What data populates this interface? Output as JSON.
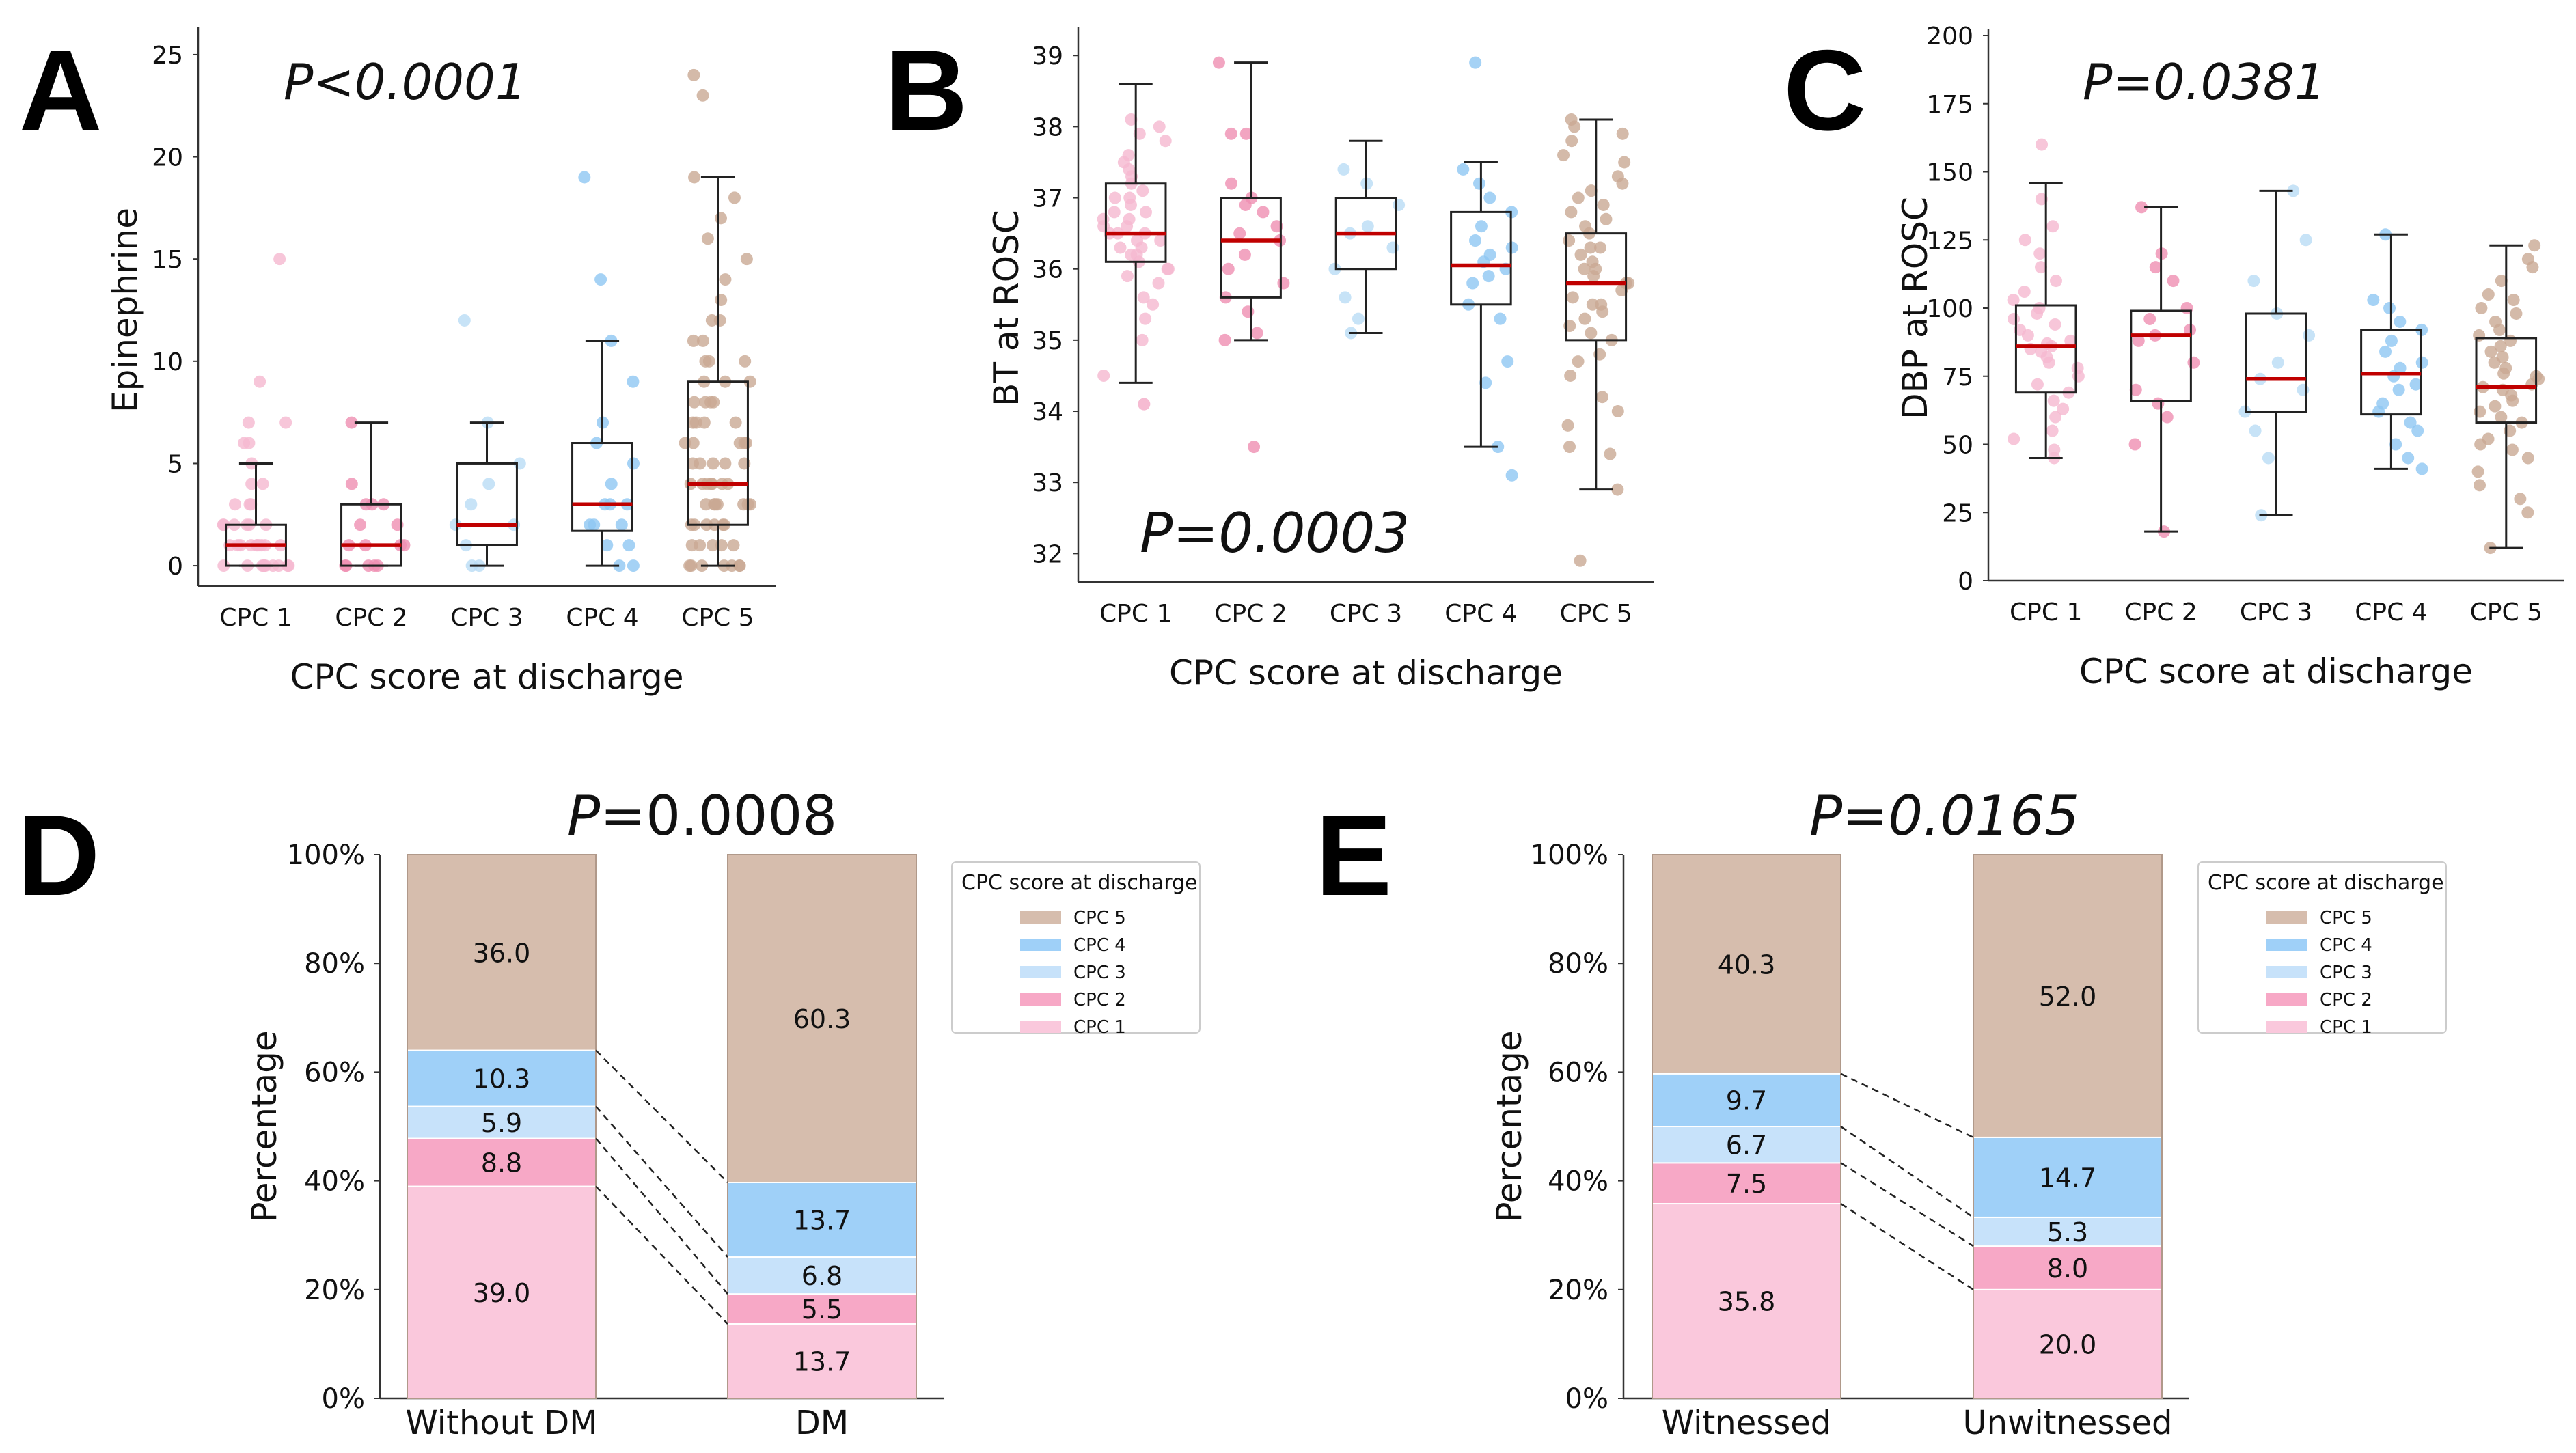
{
  "colors": {
    "cpc1": "#f5b8cf",
    "cpc2": "#ef8fb1",
    "cpc3": "#b9dcf5",
    "cpc4": "#8ec7f2",
    "cpc5": "#c9a993",
    "cpc1_fill": "#fac8dc",
    "cpc2_fill": "#f7a8c6",
    "cpc3_fill": "#c7e2fa",
    "cpc4_fill": "#9fd0f8",
    "cpc5_fill": "#d6bdad",
    "median": "#c00000",
    "axis": "#333333",
    "box": "#222222"
  },
  "chart_data": [
    {
      "id": "A",
      "letter": "A",
      "type": "box",
      "title": "P<0.0001",
      "xlabel": "CPC score at discharge",
      "ylabel": "Epinephrine",
      "categories": [
        "CPC 1",
        "CPC 2",
        "CPC 3",
        "CPC 4",
        "CPC 5"
      ],
      "ylim": [
        -1,
        26
      ],
      "yticks": [
        0,
        5,
        10,
        15,
        20,
        25
      ],
      "boxes": [
        {
          "min": 0,
          "q1": 0,
          "median": 1,
          "q3": 2,
          "max": 5
        },
        {
          "min": 0,
          "q1": 0,
          "median": 1,
          "q3": 3,
          "max": 7
        },
        {
          "min": 0,
          "q1": 1,
          "median": 2,
          "q3": 5,
          "max": 7
        },
        {
          "min": 0,
          "q1": 1.7,
          "median": 3,
          "q3": 6,
          "max": 11
        },
        {
          "min": 0,
          "q1": 2,
          "median": 4,
          "q3": 9,
          "max": 19
        }
      ],
      "points": [
        [
          0,
          0,
          0,
          0,
          0,
          0,
          0,
          0,
          0,
          0,
          0,
          1,
          1,
          1,
          1,
          1,
          1,
          1,
          1,
          1,
          1,
          2,
          2,
          2,
          2,
          2,
          2,
          3,
          3,
          3,
          4,
          4,
          5,
          6,
          6,
          7,
          7,
          9,
          15
        ],
        [
          0,
          0,
          0,
          0,
          0,
          1,
          1,
          1,
          1,
          2,
          2,
          3,
          3,
          3,
          4,
          7
        ],
        [
          0,
          0,
          1,
          2,
          2,
          3,
          4,
          5,
          7,
          12
        ],
        [
          0,
          0,
          1,
          1,
          2,
          2,
          2,
          3,
          3,
          3,
          4,
          5,
          6,
          7,
          9,
          11,
          14,
          19
        ],
        [
          0,
          0,
          0,
          0,
          0,
          0,
          0,
          1,
          1,
          1,
          1,
          1,
          2,
          2,
          2,
          2,
          2,
          2,
          3,
          3,
          3,
          3,
          3,
          3,
          3,
          4,
          4,
          4,
          4,
          4,
          4,
          4,
          5,
          5,
          5,
          5,
          5,
          6,
          6,
          6,
          6,
          6,
          7,
          7,
          7,
          7,
          8,
          8,
          8,
          8,
          9,
          9,
          9,
          10,
          10,
          10,
          11,
          11,
          12,
          12,
          13,
          14,
          15,
          16,
          17,
          18,
          19,
          23,
          24
        ]
      ]
    },
    {
      "id": "B",
      "letter": "B",
      "type": "box",
      "title": "P=0.0003",
      "xlabel": "CPC score at discharge",
      "ylabel": "BT at ROSC",
      "categories": [
        "CPC 1",
        "CPC 2",
        "CPC 3",
        "CPC 4",
        "CPC 5"
      ],
      "ylim": [
        31.6,
        39.3
      ],
      "yticks": [
        32,
        33,
        34,
        35,
        36,
        37,
        38,
        39
      ],
      "boxes": [
        {
          "min": 34.4,
          "q1": 36.1,
          "median": 36.5,
          "q3": 37.2,
          "max": 38.6
        },
        {
          "min": 35.0,
          "q1": 35.6,
          "median": 36.4,
          "q3": 37.0,
          "max": 38.9
        },
        {
          "min": 35.1,
          "q1": 36.0,
          "median": 36.5,
          "q3": 37.0,
          "max": 37.8
        },
        {
          "min": 33.5,
          "q1": 35.5,
          "median": 36.05,
          "q3": 36.8,
          "max": 37.5
        },
        {
          "min": 32.9,
          "q1": 35.0,
          "median": 35.8,
          "q3": 36.5,
          "max": 38.1
        }
      ],
      "points": [
        [
          34.1,
          34.1,
          34.5,
          35.0,
          35.3,
          35.5,
          35.6,
          35.8,
          35.9,
          36.0,
          36.0,
          36.1,
          36.2,
          36.2,
          36.3,
          36.3,
          36.4,
          36.4,
          36.5,
          36.5,
          36.5,
          36.6,
          36.6,
          36.7,
          36.7,
          36.8,
          36.8,
          36.9,
          37.0,
          37.0,
          37.1,
          37.2,
          37.3,
          37.4,
          37.5,
          37.6,
          37.8,
          37.9,
          38.0,
          38.1
        ],
        [
          33.5,
          35.0,
          35.1,
          35.4,
          35.6,
          35.8,
          36.0,
          36.2,
          36.4,
          36.5,
          36.6,
          36.8,
          36.9,
          37.0,
          37.2,
          37.9,
          37.9,
          38.9
        ],
        [
          35.1,
          35.3,
          35.6,
          36.0,
          36.3,
          36.5,
          36.6,
          36.9,
          37.2,
          37.4
        ],
        [
          33.1,
          33.5,
          34.4,
          34.7,
          35.3,
          35.5,
          35.8,
          35.9,
          36.0,
          36.1,
          36.2,
          36.3,
          36.4,
          36.6,
          36.8,
          37.0,
          37.2,
          37.4,
          38.9
        ],
        [
          31.9,
          32.9,
          33.4,
          33.5,
          33.8,
          34.0,
          34.2,
          34.5,
          34.7,
          34.8,
          35.0,
          35.1,
          35.2,
          35.3,
          35.4,
          35.5,
          35.5,
          35.6,
          35.7,
          35.8,
          35.8,
          35.9,
          36.0,
          36.0,
          36.1,
          36.2,
          36.3,
          36.3,
          36.4,
          36.5,
          36.6,
          36.7,
          36.8,
          36.9,
          37.0,
          37.1,
          37.2,
          37.3,
          37.5,
          37.6,
          37.8,
          37.9,
          38.0,
          38.1
        ]
      ]
    },
    {
      "id": "C",
      "letter": "C",
      "type": "box",
      "title": "P=0.0381",
      "xlabel": "CPC score at discharge",
      "ylabel": "DBP at ROSC",
      "categories": [
        "CPC 1",
        "CPC 2",
        "CPC 3",
        "CPC 4",
        "CPC 5"
      ],
      "ylim": [
        0,
        200
      ],
      "yticks": [
        0,
        25,
        50,
        75,
        100,
        125,
        150,
        175,
        200
      ],
      "boxes": [
        {
          "min": 45,
          "q1": 69,
          "median": 86,
          "q3": 101,
          "max": 146
        },
        {
          "min": 18,
          "q1": 66,
          "median": 90,
          "q3": 99,
          "max": 137
        },
        {
          "min": 24,
          "q1": 62,
          "median": 74,
          "q3": 98,
          "max": 143
        },
        {
          "min": 41,
          "q1": 61,
          "median": 76,
          "q3": 92,
          "max": 127
        },
        {
          "min": 12,
          "q1": 58,
          "median": 71,
          "q3": 89,
          "max": 123
        }
      ],
      "points": [
        [
          45,
          48,
          52,
          55,
          60,
          63,
          66,
          69,
          72,
          75,
          78,
          80,
          82,
          84,
          85,
          86,
          87,
          88,
          90,
          92,
          94,
          96,
          98,
          100,
          103,
          106,
          110,
          115,
          120,
          125,
          130,
          140,
          160
        ],
        [
          18,
          50,
          60,
          65,
          70,
          80,
          88,
          90,
          92,
          96,
          100,
          110,
          115,
          120,
          137
        ],
        [
          24,
          45,
          55,
          62,
          70,
          74,
          80,
          90,
          98,
          110,
          125,
          143
        ],
        [
          41,
          45,
          50,
          55,
          58,
          62,
          65,
          70,
          72,
          75,
          78,
          80,
          84,
          88,
          92,
          95,
          100,
          103,
          127
        ],
        [
          12,
          25,
          30,
          35,
          40,
          45,
          48,
          50,
          52,
          55,
          58,
          60,
          62,
          64,
          66,
          68,
          70,
          71,
          72,
          74,
          75,
          76,
          78,
          80,
          82,
          84,
          86,
          88,
          90,
          92,
          95,
          98,
          100,
          103,
          105,
          110,
          115,
          118,
          123
        ]
      ]
    },
    {
      "id": "D",
      "letter": "D",
      "type": "stacked-bar",
      "title": "P=0.0008",
      "title_italic": "P",
      "title_rest": "=0.0008",
      "xlabel": "",
      "ylabel": "Percentage",
      "categories": [
        "Without DM",
        "DM"
      ],
      "ylim": [
        0,
        100
      ],
      "yticks": [
        "0%",
        "20%",
        "40%",
        "60%",
        "80%",
        "100%"
      ],
      "series": [
        {
          "name": "CPC 1",
          "values": [
            39.0,
            13.7
          ],
          "labels": [
            "39.0",
            "13.7"
          ]
        },
        {
          "name": "CPC 2",
          "values": [
            8.8,
            5.5
          ],
          "labels": [
            "8.8",
            "5.5"
          ]
        },
        {
          "name": "CPC 3",
          "values": [
            5.9,
            6.8
          ],
          "labels": [
            "5.9",
            "6.8"
          ]
        },
        {
          "name": "CPC 4",
          "values": [
            10.3,
            13.7
          ],
          "labels": [
            "10.3",
            "13.7"
          ]
        },
        {
          "name": "CPC 5",
          "values": [
            36.0,
            60.3
          ],
          "labels": [
            "36.0",
            "60.3"
          ]
        }
      ],
      "legend_title": "CPC score at discharge",
      "legend_order": [
        "CPC 5",
        "CPC 4",
        "CPC 3",
        "CPC 2",
        "CPC 1"
      ]
    },
    {
      "id": "E",
      "letter": "E",
      "type": "stacked-bar",
      "title": "P=0.0165",
      "title_italic": "P=0.0165",
      "title_rest": "",
      "xlabel": "",
      "ylabel": "Percentage",
      "categories": [
        "Witnessed",
        "Unwitnessed"
      ],
      "ylim": [
        0,
        100
      ],
      "yticks": [
        "0%",
        "20%",
        "40%",
        "60%",
        "80%",
        "100%"
      ],
      "series": [
        {
          "name": "CPC 1",
          "values": [
            35.8,
            20.0
          ],
          "labels": [
            "35.8",
            "20.0"
          ]
        },
        {
          "name": "CPC 2",
          "values": [
            7.5,
            8.0
          ],
          "labels": [
            "7.5",
            "8.0"
          ]
        },
        {
          "name": "CPC 3",
          "values": [
            6.7,
            5.3
          ],
          "labels": [
            "6.7",
            "5.3"
          ]
        },
        {
          "name": "CPC 4",
          "values": [
            9.7,
            14.7
          ],
          "labels": [
            "9.7",
            "14.7"
          ]
        },
        {
          "name": "CPC 5",
          "values": [
            40.3,
            52.0
          ],
          "labels": [
            "40.3",
            "52.0"
          ]
        }
      ],
      "legend_title": "CPC score at discharge",
      "legend_order": [
        "CPC 5",
        "CPC 4",
        "CPC 3",
        "CPC 2",
        "CPC 1"
      ]
    }
  ]
}
